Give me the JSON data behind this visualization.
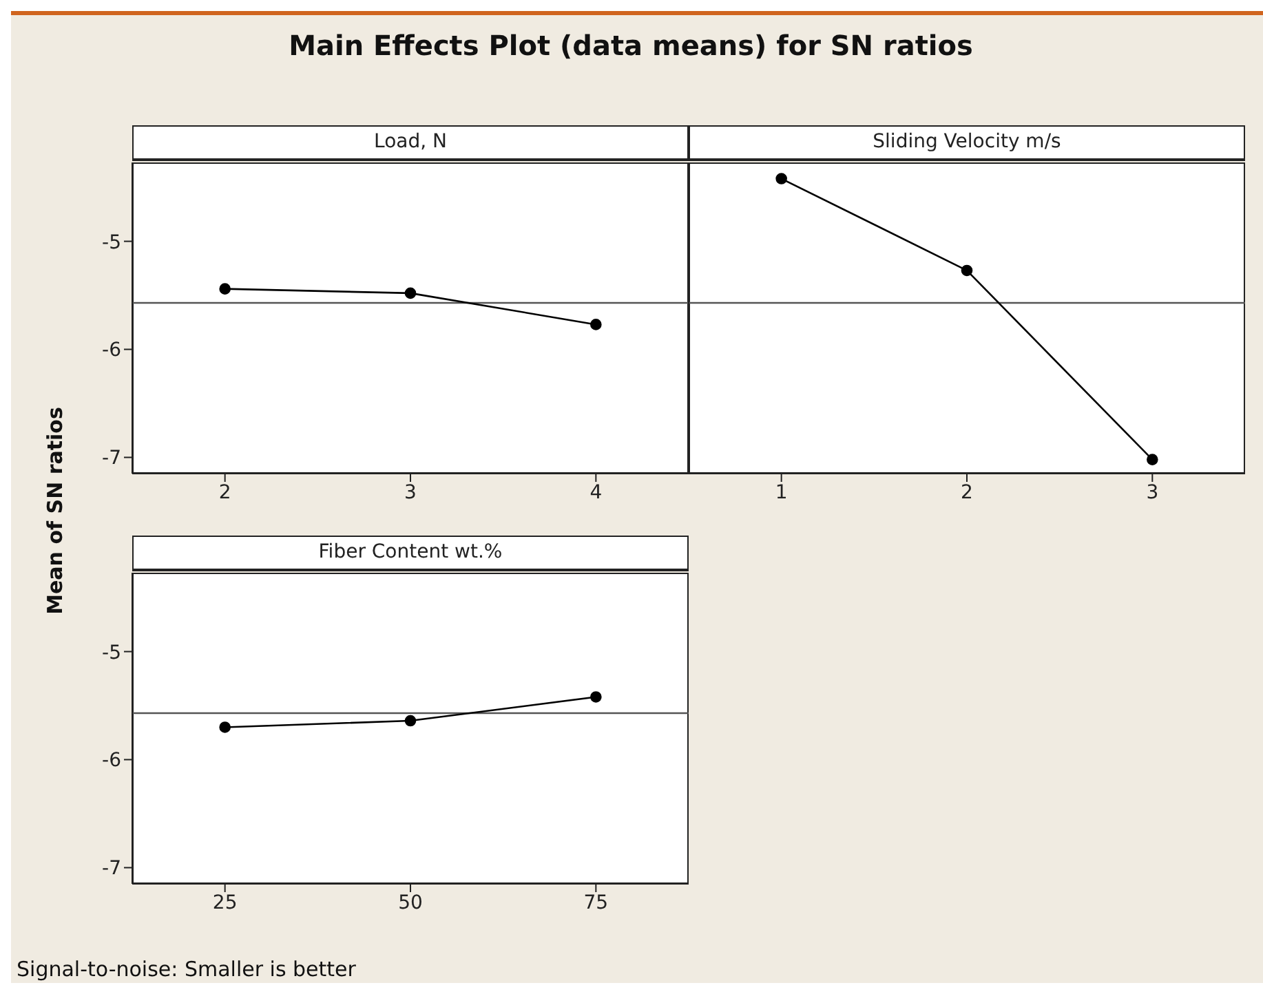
{
  "chart_data": [
    {
      "type": "line",
      "title": "Main Effects Plot (data means) for SN ratios",
      "ylabel": "Mean of SN ratios",
      "xlabel": "Load, N",
      "x": [
        2,
        3,
        4
      ],
      "values": [
        -5.44,
        -5.48,
        -5.77
      ],
      "color": "#000000",
      "xlim": [
        1.5,
        4.5
      ],
      "xticks": [
        2,
        3,
        4
      ],
      "ylim": [
        -7.15,
        -4.27
      ],
      "yticks": [
        -7,
        -6,
        -5
      ],
      "ref_lines": [
        {
          "axis": "y",
          "value": -5.57,
          "color": "#555555"
        }
      ],
      "marker": "circle",
      "line_style": "solid"
    },
    {
      "type": "line",
      "xlabel": "Sliding Velocity m/s",
      "x": [
        1,
        2,
        3
      ],
      "values": [
        -4.42,
        -5.27,
        -7.02
      ],
      "color": "#000000",
      "xlim": [
        0.5,
        3.5
      ],
      "xticks": [
        1,
        2,
        3
      ],
      "ylim": [
        -7.15,
        -4.27
      ],
      "yticks": [
        -7,
        -6,
        -5
      ],
      "ref_lines": [
        {
          "axis": "y",
          "value": -5.57,
          "color": "#555555"
        }
      ],
      "marker": "circle",
      "line_style": "solid",
      "tick_labels": "x"
    },
    {
      "type": "line",
      "xlabel": "Fiber Content wt.%",
      "x": [
        25,
        50,
        75
      ],
      "values": [
        -5.7,
        -5.64,
        -5.42
      ],
      "color": "#000000",
      "xlim": [
        12.5,
        87.5
      ],
      "xticks": [
        25,
        50,
        75
      ],
      "ylim": [
        -7.15,
        -4.27
      ],
      "yticks": [
        -7,
        -6,
        -5
      ],
      "ref_lines": [
        {
          "axis": "y",
          "value": -5.57,
          "color": "#555555"
        }
      ],
      "marker": "circle",
      "line_style": "solid",
      "annotations": [
        "Signal-to-noise: Smaller is better"
      ]
    }
  ]
}
